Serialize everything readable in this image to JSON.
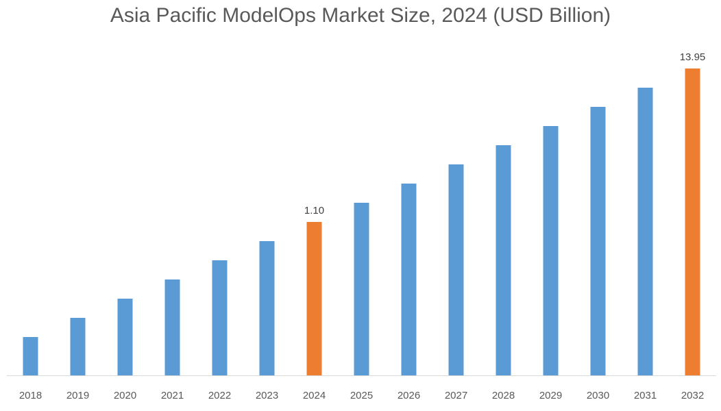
{
  "chart_data": {
    "type": "bar",
    "title": "Asia Pacific ModelOps Market Size, 2024 (USD Billion)",
    "xlabel": "",
    "ylabel": "",
    "categories": [
      "2018",
      "2019",
      "2020",
      "2021",
      "2022",
      "2023",
      "2024",
      "2025",
      "2026",
      "2027",
      "2028",
      "2029",
      "2030",
      "2031",
      "2032"
    ],
    "values": [
      null,
      null,
      null,
      null,
      null,
      null,
      1.1,
      null,
      null,
      null,
      null,
      null,
      null,
      null,
      13.95
    ],
    "data_labels": {
      "2024": "1.10",
      "2032": "13.95"
    },
    "highlight_categories": [
      "2024",
      "2032"
    ],
    "colors": {
      "default": "#5B9BD5",
      "highlight": "#ED7D31",
      "axis": "#D9D9D9",
      "text": "#595959"
    },
    "grid": false,
    "legend": "none"
  }
}
